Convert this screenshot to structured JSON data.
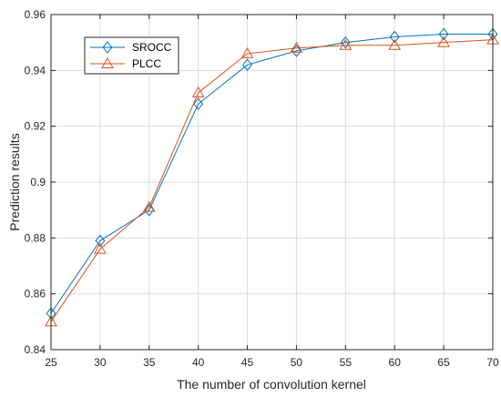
{
  "chart_data": {
    "type": "line",
    "title": "",
    "xlabel": "The number of convolution kernel",
    "ylabel": "Prediction results",
    "x": [
      25,
      30,
      35,
      40,
      45,
      50,
      55,
      60,
      65,
      70
    ],
    "xlim": [
      25,
      70
    ],
    "ylim": [
      0.84,
      0.96
    ],
    "x_ticks": [
      "25",
      "30",
      "35",
      "40",
      "45",
      "50",
      "55",
      "60",
      "65",
      "70"
    ],
    "y_ticks": [
      "0.84",
      "0.86",
      "0.88",
      "0.9",
      "0.92",
      "0.94",
      "0.96"
    ],
    "grid": true,
    "legend_position": "top-left",
    "series": [
      {
        "name": "SROCC",
        "marker": "diamond",
        "color": "#0072BD",
        "values": [
          0.853,
          0.879,
          0.89,
          0.928,
          0.942,
          0.947,
          0.95,
          0.952,
          0.953,
          0.953
        ]
      },
      {
        "name": "PLCC",
        "marker": "triangle",
        "color": "#D95319",
        "values": [
          0.85,
          0.876,
          0.891,
          0.932,
          0.946,
          0.948,
          0.949,
          0.949,
          0.95,
          0.951
        ]
      }
    ]
  }
}
